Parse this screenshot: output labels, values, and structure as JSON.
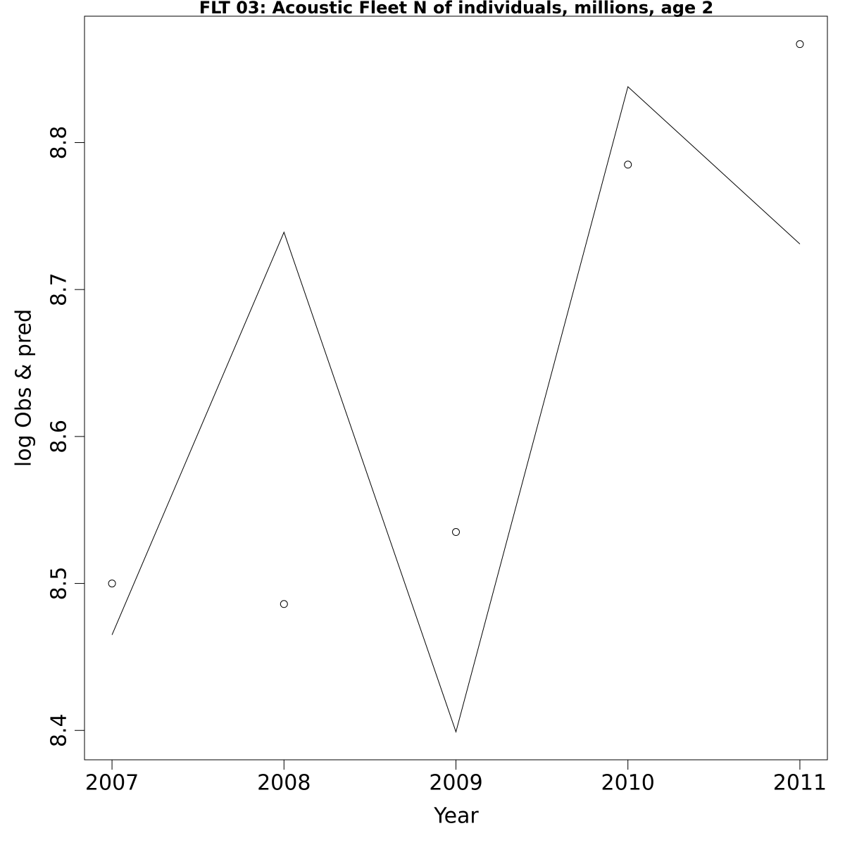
{
  "chart_data": {
    "type": "line",
    "title": "FLT 03: Acoustic Fleet  N of individuals, millions, age 2",
    "x_label": "Year",
    "y_label": "log Obs & pred",
    "x": [
      2007,
      2008,
      2009,
      2010,
      2011
    ],
    "series": [
      {
        "style": "points",
        "color": "#000000",
        "values": [
          8.5,
          8.486,
          8.535,
          8.785,
          8.867
        ]
      },
      {
        "style": "line",
        "color": "#000000",
        "values": [
          8.465,
          8.739,
          8.399,
          8.838,
          8.731
        ]
      }
    ],
    "xlim": [
      2006.84,
      2011.16
    ],
    "xticks": [
      2007,
      2008,
      2009,
      2010,
      2011
    ],
    "ylim": [
      8.38,
      8.886
    ],
    "yticks": [
      8.4,
      8.5,
      8.6,
      8.7,
      8.8
    ],
    "grid": false
  }
}
